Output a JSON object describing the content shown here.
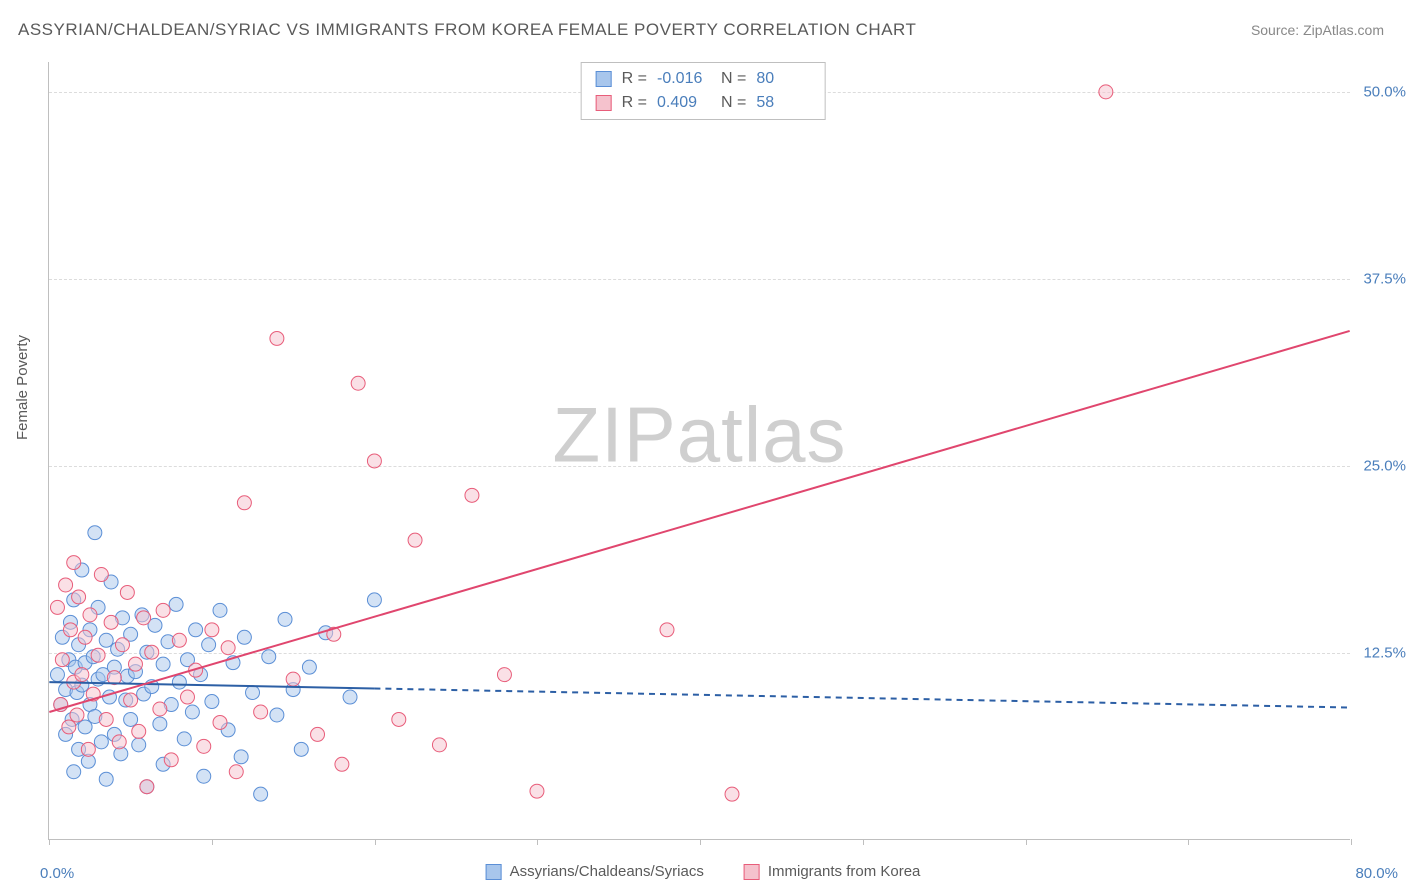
{
  "title": "ASSYRIAN/CHALDEAN/SYRIAC VS IMMIGRANTS FROM KOREA FEMALE POVERTY CORRELATION CHART",
  "source": "Source: ZipAtlas.com",
  "ylabel": "Female Poverty",
  "watermark_a": "ZIP",
  "watermark_b": "atlas",
  "chart": {
    "type": "scatter-with-regression",
    "xlim": [
      0,
      80
    ],
    "ylim": [
      0,
      52
    ],
    "xticks": [
      0,
      10,
      20,
      30,
      40,
      50,
      60,
      70,
      80
    ],
    "yticks": [
      12.5,
      25.0,
      37.5,
      50.0
    ],
    "ytick_labels": [
      "12.5%",
      "25.0%",
      "37.5%",
      "50.0%"
    ],
    "xlim_min_label": "0.0%",
    "xlim_max_label": "80.0%",
    "grid_color": "#dcdcdc",
    "axis_color": "#bfbfbf",
    "background_color": "#ffffff",
    "marker_radius": 7,
    "marker_opacity": 0.5,
    "line_width": 2,
    "series": [
      {
        "name": "Assyrians/Chaldeans/Syriacs",
        "color_fill": "#a8c6ec",
        "color_stroke": "#5b8fd6",
        "line_color": "#2c5fa5",
        "R": "-0.016",
        "N": "80",
        "regression": {
          "x0": 0,
          "y0": 10.5,
          "x1": 80,
          "y1": 8.8,
          "solid_until_x": 20
        },
        "points": [
          [
            0.5,
            11.0
          ],
          [
            0.7,
            9.0
          ],
          [
            0.8,
            13.5
          ],
          [
            1.0,
            7.0
          ],
          [
            1.0,
            10.0
          ],
          [
            1.2,
            12.0
          ],
          [
            1.3,
            14.5
          ],
          [
            1.4,
            8.0
          ],
          [
            1.5,
            16.0
          ],
          [
            1.5,
            4.5
          ],
          [
            1.6,
            11.5
          ],
          [
            1.7,
            9.8
          ],
          [
            1.8,
            6.0
          ],
          [
            1.8,
            13.0
          ],
          [
            2.0,
            10.3
          ],
          [
            2.0,
            18.0
          ],
          [
            2.2,
            7.5
          ],
          [
            2.2,
            11.8
          ],
          [
            2.4,
            5.2
          ],
          [
            2.5,
            14.0
          ],
          [
            2.5,
            9.0
          ],
          [
            2.7,
            12.2
          ],
          [
            2.8,
            20.5
          ],
          [
            2.8,
            8.2
          ],
          [
            3.0,
            10.7
          ],
          [
            3.0,
            15.5
          ],
          [
            3.2,
            6.5
          ],
          [
            3.3,
            11.0
          ],
          [
            3.5,
            13.3
          ],
          [
            3.5,
            4.0
          ],
          [
            3.7,
            9.5
          ],
          [
            3.8,
            17.2
          ],
          [
            4.0,
            11.5
          ],
          [
            4.0,
            7.0
          ],
          [
            4.2,
            12.7
          ],
          [
            4.4,
            5.7
          ],
          [
            4.5,
            14.8
          ],
          [
            4.7,
            9.3
          ],
          [
            4.8,
            10.9
          ],
          [
            5.0,
            8.0
          ],
          [
            5.0,
            13.7
          ],
          [
            5.3,
            11.2
          ],
          [
            5.5,
            6.3
          ],
          [
            5.7,
            15.0
          ],
          [
            5.8,
            9.7
          ],
          [
            6.0,
            12.5
          ],
          [
            6.0,
            3.5
          ],
          [
            6.3,
            10.2
          ],
          [
            6.5,
            14.3
          ],
          [
            6.8,
            7.7
          ],
          [
            7.0,
            11.7
          ],
          [
            7.0,
            5.0
          ],
          [
            7.3,
            13.2
          ],
          [
            7.5,
            9.0
          ],
          [
            7.8,
            15.7
          ],
          [
            8.0,
            10.5
          ],
          [
            8.3,
            6.7
          ],
          [
            8.5,
            12.0
          ],
          [
            8.8,
            8.5
          ],
          [
            9.0,
            14.0
          ],
          [
            9.3,
            11.0
          ],
          [
            9.5,
            4.2
          ],
          [
            9.8,
            13.0
          ],
          [
            10.0,
            9.2
          ],
          [
            10.5,
            15.3
          ],
          [
            11.0,
            7.3
          ],
          [
            11.3,
            11.8
          ],
          [
            11.8,
            5.5
          ],
          [
            12.0,
            13.5
          ],
          [
            12.5,
            9.8
          ],
          [
            13.0,
            3.0
          ],
          [
            13.5,
            12.2
          ],
          [
            14.0,
            8.3
          ],
          [
            14.5,
            14.7
          ],
          [
            15.0,
            10.0
          ],
          [
            15.5,
            6.0
          ],
          [
            16.0,
            11.5
          ],
          [
            17.0,
            13.8
          ],
          [
            18.5,
            9.5
          ],
          [
            20.0,
            16.0
          ]
        ]
      },
      {
        "name": "Immigrants from Korea",
        "color_fill": "#f5c2cd",
        "color_stroke": "#e85d7a",
        "line_color": "#e0466e",
        "R": "0.409",
        "N": "58",
        "regression": {
          "x0": 0,
          "y0": 8.5,
          "x1": 80,
          "y1": 34.0,
          "solid_until_x": 80
        },
        "points": [
          [
            0.5,
            15.5
          ],
          [
            0.7,
            9.0
          ],
          [
            0.8,
            12.0
          ],
          [
            1.0,
            17.0
          ],
          [
            1.2,
            7.5
          ],
          [
            1.3,
            14.0
          ],
          [
            1.5,
            10.5
          ],
          [
            1.5,
            18.5
          ],
          [
            1.7,
            8.3
          ],
          [
            1.8,
            16.2
          ],
          [
            2.0,
            11.0
          ],
          [
            2.2,
            13.5
          ],
          [
            2.4,
            6.0
          ],
          [
            2.5,
            15.0
          ],
          [
            2.7,
            9.7
          ],
          [
            3.0,
            12.3
          ],
          [
            3.2,
            17.7
          ],
          [
            3.5,
            8.0
          ],
          [
            3.8,
            14.5
          ],
          [
            4.0,
            10.8
          ],
          [
            4.3,
            6.5
          ],
          [
            4.5,
            13.0
          ],
          [
            4.8,
            16.5
          ],
          [
            5.0,
            9.3
          ],
          [
            5.3,
            11.7
          ],
          [
            5.5,
            7.2
          ],
          [
            5.8,
            14.8
          ],
          [
            6.0,
            3.5
          ],
          [
            6.3,
            12.5
          ],
          [
            6.8,
            8.7
          ],
          [
            7.0,
            15.3
          ],
          [
            7.5,
            5.3
          ],
          [
            8.0,
            13.3
          ],
          [
            8.5,
            9.5
          ],
          [
            9.0,
            11.3
          ],
          [
            9.5,
            6.2
          ],
          [
            10.0,
            14.0
          ],
          [
            10.5,
            7.8
          ],
          [
            11.0,
            12.8
          ],
          [
            11.5,
            4.5
          ],
          [
            12.0,
            22.5
          ],
          [
            13.0,
            8.5
          ],
          [
            14.0,
            33.5
          ],
          [
            15.0,
            10.7
          ],
          [
            16.5,
            7.0
          ],
          [
            17.5,
            13.7
          ],
          [
            18.0,
            5.0
          ],
          [
            19.0,
            30.5
          ],
          [
            20.0,
            25.3
          ],
          [
            21.5,
            8.0
          ],
          [
            22.5,
            20.0
          ],
          [
            24.0,
            6.3
          ],
          [
            26.0,
            23.0
          ],
          [
            28.0,
            11.0
          ],
          [
            30.0,
            3.2
          ],
          [
            38.0,
            14.0
          ],
          [
            42.0,
            3.0
          ],
          [
            65.0,
            50.0
          ]
        ]
      }
    ]
  },
  "legend_top": {
    "r_label": "R =",
    "n_label": "N ="
  }
}
